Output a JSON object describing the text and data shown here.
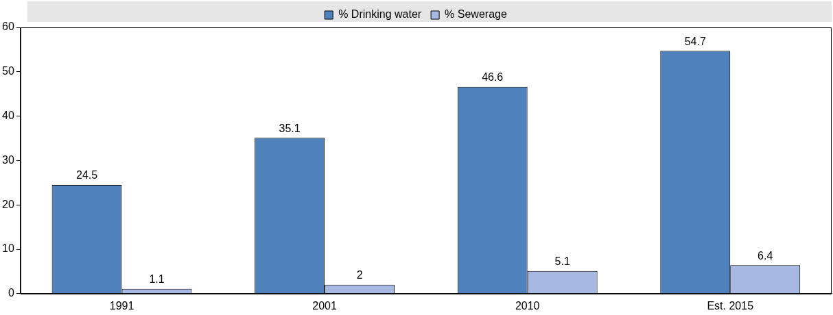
{
  "chart_data": {
    "type": "bar",
    "categories": [
      "1991",
      "2001",
      "2010",
      "Est. 2015"
    ],
    "series": [
      {
        "name": "% Drinking water",
        "color": "#4f81bd",
        "values": [
          24.5,
          35.1,
          46.6,
          54.7
        ]
      },
      {
        "name": "% Sewerage",
        "color": "#a7b9e3",
        "values": [
          1.1,
          2,
          5.1,
          6.4
        ]
      }
    ],
    "ylim": [
      0,
      60
    ],
    "yticks": [
      0,
      10,
      20,
      30,
      40,
      50,
      60
    ],
    "grid": false,
    "legend": "top",
    "data_labels": true
  }
}
